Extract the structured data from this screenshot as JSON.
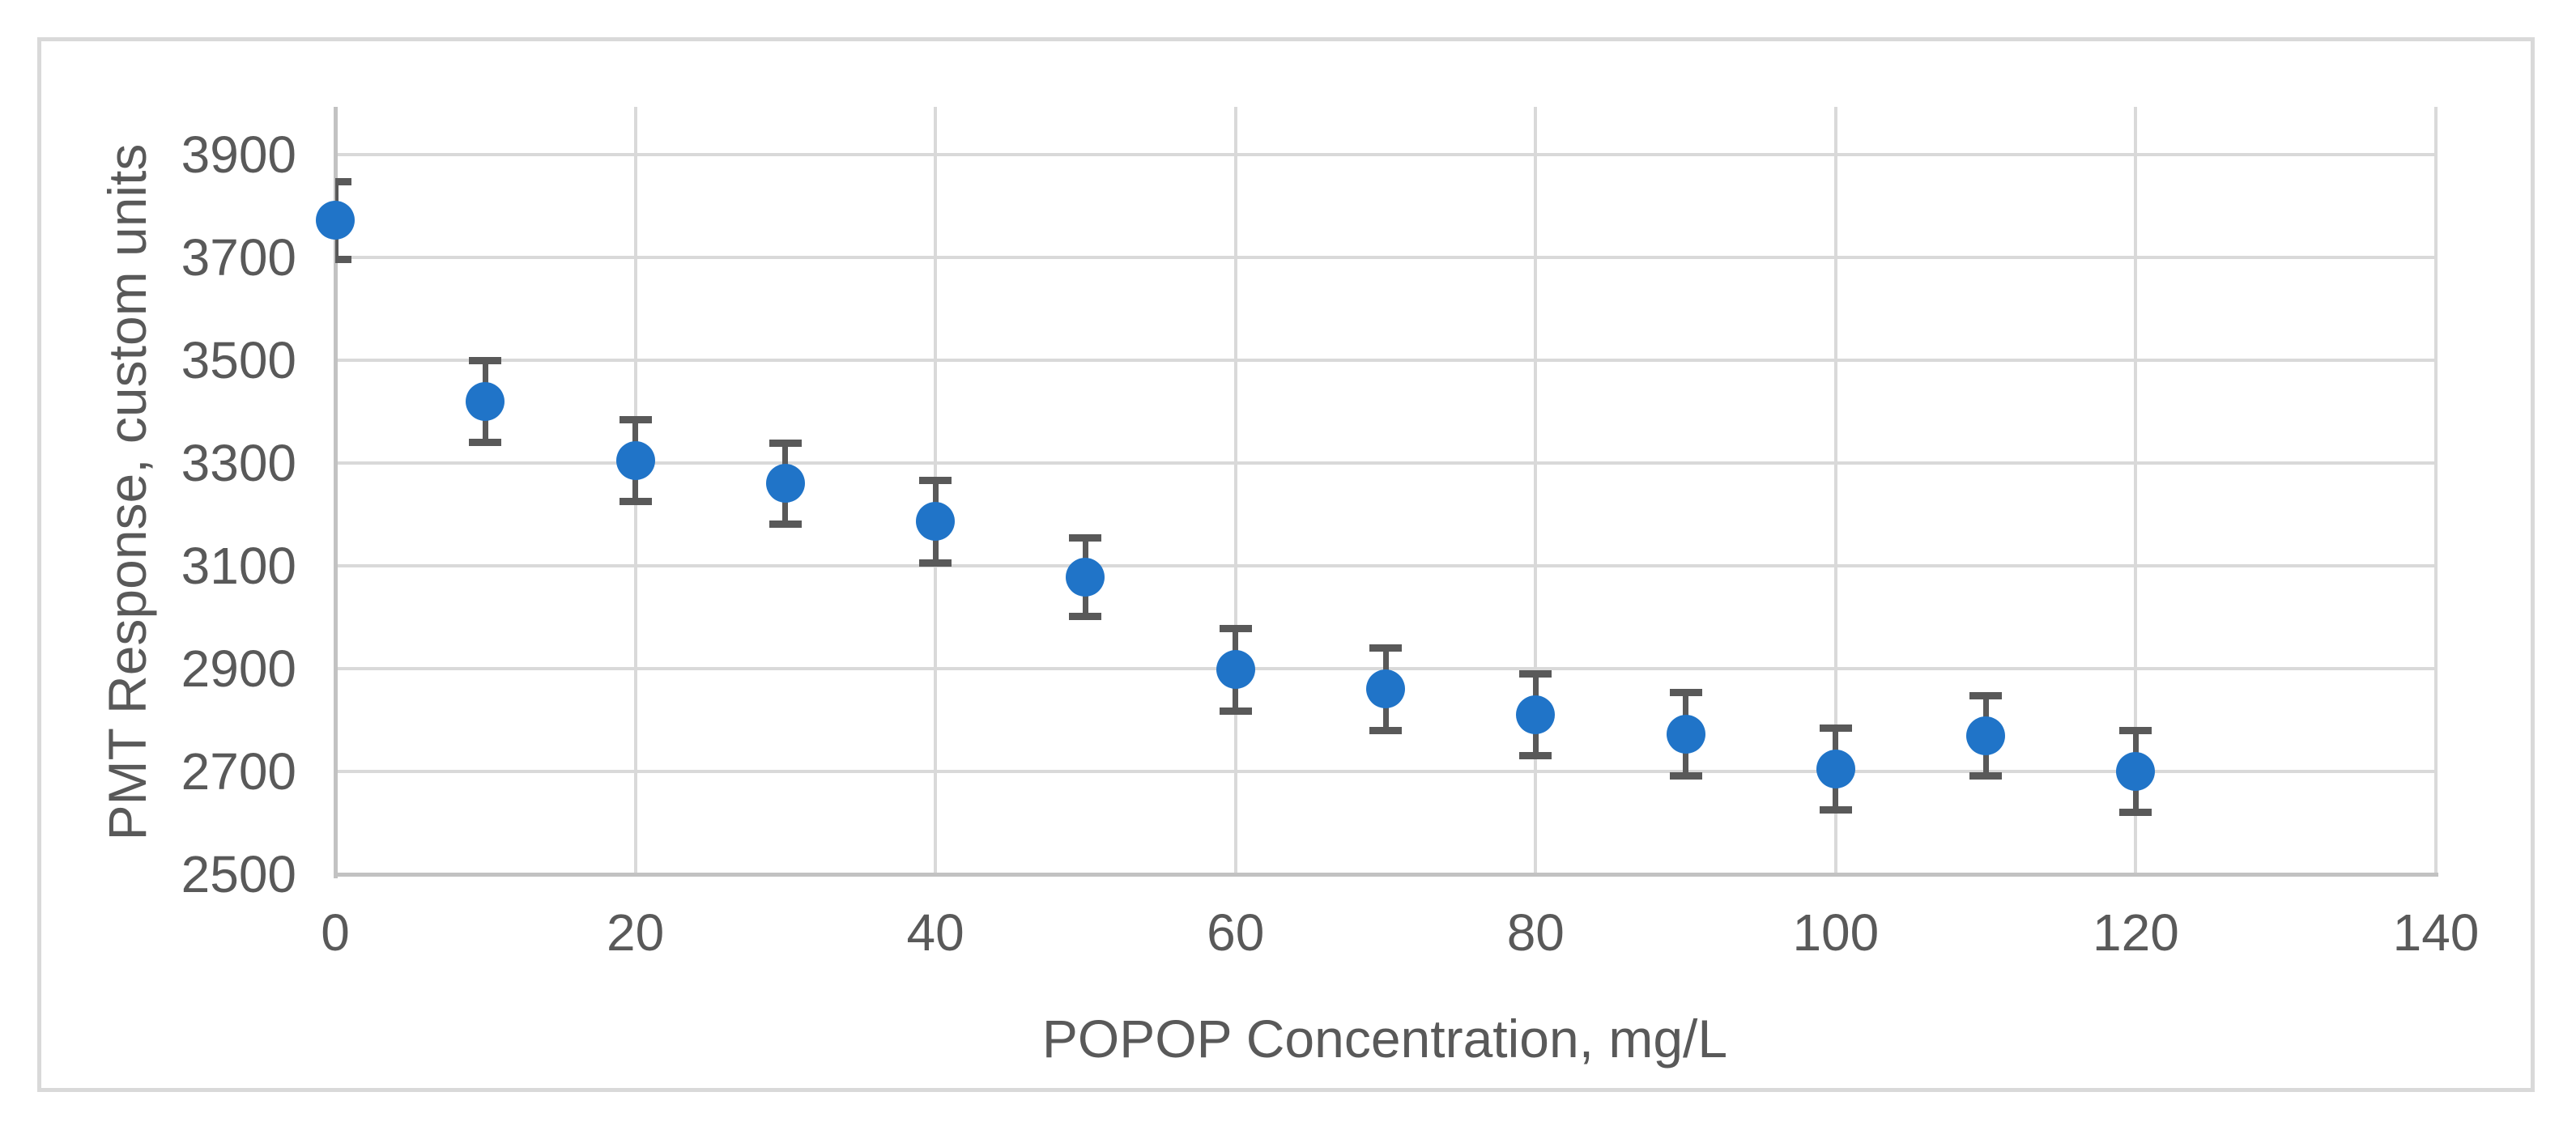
{
  "figure": {
    "colors": {
      "background": "#FFFFFF",
      "frame_border": "#D9D9D9",
      "gridline": "#D9D9D9",
      "axis_line": "#C2C2C2",
      "text": "#595959",
      "marker": "#2074C8",
      "error_bar": "#595959"
    }
  },
  "chart_data": {
    "type": "scatter",
    "title": "",
    "xlabel": "POPOP Concentration, mg/L",
    "ylabel": "PMT Response, custom units",
    "x": [
      0,
      10,
      20,
      30,
      40,
      50,
      60,
      70,
      80,
      90,
      100,
      110,
      120
    ],
    "y": [
      3772,
      3420,
      3305,
      3260,
      3186,
      3078,
      2898,
      2860,
      2810,
      2772,
      2705,
      2770,
      2700
    ],
    "y_err": [
      76,
      80,
      80,
      79,
      80,
      77,
      80,
      80,
      79,
      81,
      80,
      78,
      80
    ],
    "xlim": [
      0,
      140
    ],
    "ylim": [
      2500,
      3993
    ],
    "x_tick_step": 20,
    "y_tick_step": 200,
    "x_ticks": [
      {
        "v": 0,
        "label": "0"
      },
      {
        "v": 20,
        "label": "20"
      },
      {
        "v": 40,
        "label": "40"
      },
      {
        "v": 60,
        "label": "60"
      },
      {
        "v": 80,
        "label": "80"
      },
      {
        "v": 100,
        "label": "100"
      },
      {
        "v": 120,
        "label": "120"
      },
      {
        "v": 140,
        "label": "140"
      }
    ],
    "y_ticks": [
      {
        "v": 2500,
        "label": "2500"
      },
      {
        "v": 2700,
        "label": "2700"
      },
      {
        "v": 2900,
        "label": "2900"
      },
      {
        "v": 3100,
        "label": "3100"
      },
      {
        "v": 3300,
        "label": "3300"
      },
      {
        "v": 3500,
        "label": "3500"
      },
      {
        "v": 3700,
        "label": "3700"
      },
      {
        "v": 3900,
        "label": "3900"
      }
    ],
    "grid": "on",
    "legend": "none",
    "marker_shape": "circle",
    "error_bar_direction": "vertical"
  }
}
